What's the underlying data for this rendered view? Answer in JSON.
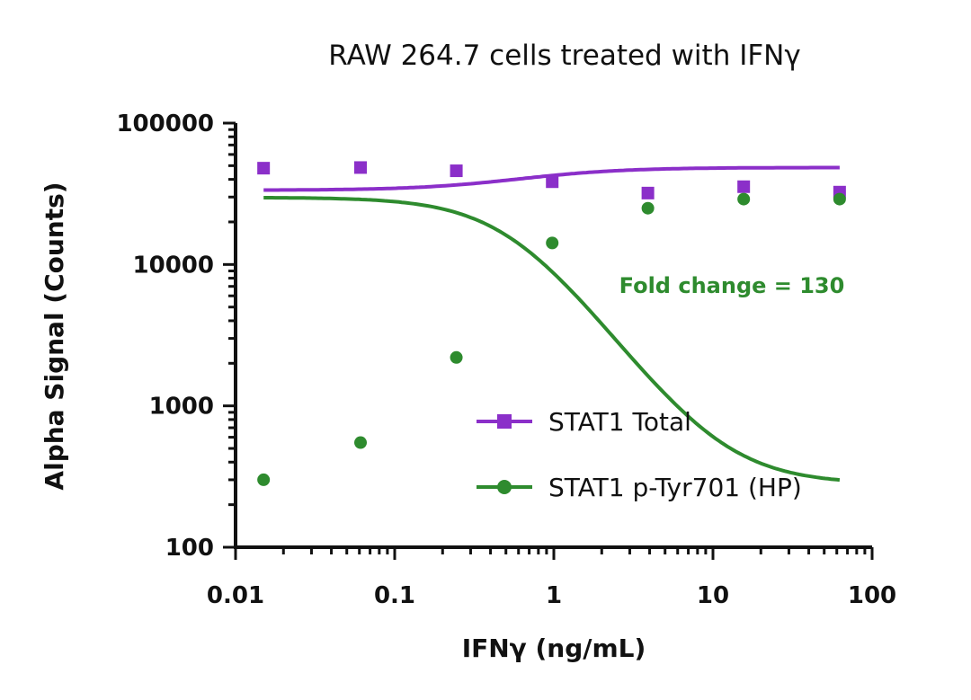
{
  "chart_data": {
    "type": "line",
    "title": "RAW 264.7 cells treated with IFNγ",
    "xlabel": "IFNγ (ng/mL)",
    "ylabel": "Alpha Signal (Counts)",
    "x_scale": "log",
    "y_scale": "log",
    "xlim": [
      0.01,
      100
    ],
    "ylim": [
      100,
      100000
    ],
    "x_ticks": [
      {
        "value": 0.01,
        "label": "0.01"
      },
      {
        "value": 0.1,
        "label": "0.1"
      },
      {
        "value": 1,
        "label": "1"
      },
      {
        "value": 10,
        "label": "10"
      },
      {
        "value": 100,
        "label": "100"
      }
    ],
    "y_ticks": [
      {
        "value": 100,
        "label": "100"
      },
      {
        "value": 1000,
        "label": "1000"
      },
      {
        "value": 10000,
        "label": "10000"
      },
      {
        "value": 100000,
        "label": "100000"
      }
    ],
    "x": [
      0.015,
      0.061,
      0.244,
      0.977,
      3.9,
      15.6,
      62.5
    ],
    "series": [
      {
        "name": "STAT1 Total",
        "marker": "square",
        "color": "#8b2fc9",
        "values": [
          48000,
          48500,
          46000,
          38500,
          32000,
          35500,
          32500
        ],
        "fit": {
          "bottom": 33500,
          "top": 48500,
          "ec50": 0.7,
          "hill": -1.3
        }
      },
      {
        "name": "STAT1 p-Tyr701 (HP)",
        "marker": "circle",
        "color": "#2e8b2e",
        "values": [
          300,
          550,
          2200,
          14200,
          25000,
          29000,
          29000
        ],
        "fit": {
          "bottom": 280,
          "top": 29800,
          "ec50": 0.55,
          "hill": 1.55
        }
      }
    ],
    "legend": {
      "position": "center-right"
    },
    "annotation": {
      "text": "Fold change = 130",
      "color": "#2e8b2e"
    },
    "grid": false
  }
}
